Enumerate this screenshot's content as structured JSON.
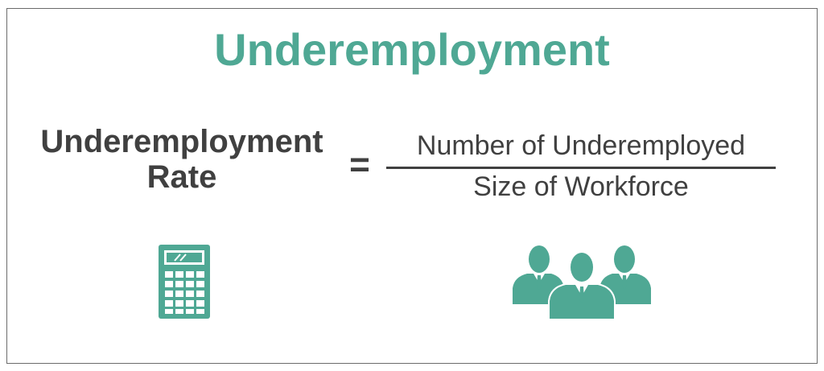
{
  "title": "Underemployment",
  "formula": {
    "lhs_line1": "Underemployment",
    "lhs_line2": "Rate",
    "equals": "=",
    "numerator": "Number of Underemployed",
    "denominator": "Size of Workforce"
  },
  "icons": {
    "calculator": "calculator-icon",
    "people": "people-group-icon"
  },
  "colors": {
    "accent": "#4fa894",
    "text": "#404040",
    "border": "#6b6b6b"
  }
}
